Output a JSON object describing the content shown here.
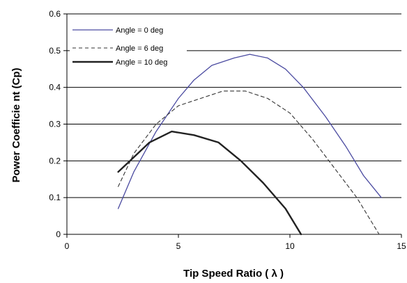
{
  "chart_data": {
    "type": "line",
    "title": "",
    "xlabel": "Tip Speed Ratio ( λ )",
    "ylabel": "Power Coefficie nt (Cp)",
    "xlim": [
      0,
      15
    ],
    "ylim": [
      0,
      0.6
    ],
    "x_ticks": [
      "0",
      "5",
      "10",
      "15"
    ],
    "y_ticks": [
      "0",
      "0.1",
      "0.2",
      "0.3",
      "0.4",
      "0.5",
      "0.6"
    ],
    "grid": "horizontal",
    "legend_position": "top-left",
    "series": [
      {
        "name": "Angle = 0 deg",
        "color": "#4a4aa0",
        "style": "solid",
        "x": [
          2.3,
          3.0,
          4.0,
          5.0,
          5.7,
          6.5,
          7.5,
          8.2,
          9.0,
          9.8,
          10.6,
          11.6,
          12.5,
          13.3,
          14.1
        ],
        "y": [
          0.07,
          0.17,
          0.28,
          0.37,
          0.42,
          0.46,
          0.48,
          0.49,
          0.48,
          0.45,
          0.4,
          0.32,
          0.24,
          0.16,
          0.1
        ]
      },
      {
        "name": "Angle = 6 deg",
        "color": "#333333",
        "style": "dashed",
        "x": [
          2.3,
          3.0,
          4.0,
          5.0,
          6.0,
          7.0,
          8.0,
          9.0,
          10.0,
          11.0,
          12.0,
          13.0,
          13.5,
          14.0
        ],
        "y": [
          0.13,
          0.22,
          0.3,
          0.35,
          0.37,
          0.39,
          0.39,
          0.37,
          0.33,
          0.26,
          0.18,
          0.1,
          0.05,
          0.0
        ]
      },
      {
        "name": "Angle = 10 deg",
        "color": "#222222",
        "style": "solid-bold",
        "x": [
          2.3,
          3.0,
          3.7,
          4.7,
          5.7,
          6.8,
          7.8,
          8.8,
          9.8,
          10.5
        ],
        "y": [
          0.17,
          0.21,
          0.25,
          0.28,
          0.27,
          0.25,
          0.2,
          0.14,
          0.07,
          0.0
        ]
      }
    ]
  }
}
